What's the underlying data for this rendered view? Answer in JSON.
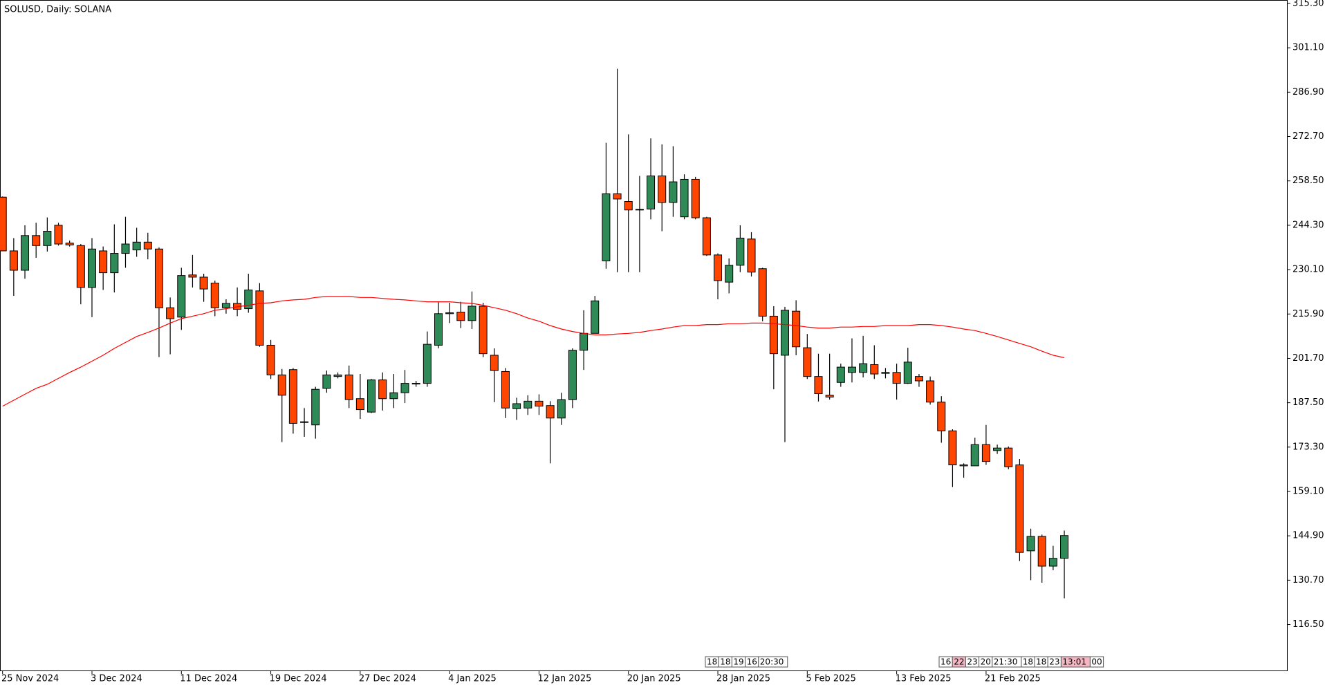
{
  "chart_data": {
    "type": "candlestick",
    "title": "SOLUSD, Daily:  SOLANA",
    "categories": [
      "25 Nov 2024",
      null,
      null,
      null,
      null,
      null,
      null,
      null,
      "3 Dec 2024",
      null,
      null,
      null,
      null,
      null,
      null,
      null,
      "11 Dec 2024",
      null,
      null,
      null,
      null,
      null,
      null,
      null,
      "19 Dec 2024",
      null,
      null,
      null,
      null,
      null,
      null,
      null,
      "27 Dec 2024",
      null,
      null,
      null,
      null,
      null,
      null,
      null,
      "4 Jan 2025",
      null,
      null,
      null,
      null,
      null,
      null,
      null,
      "12 Jan 2025",
      null,
      null,
      null,
      null,
      null,
      null,
      null,
      "20 Jan 2025",
      null,
      null,
      null,
      null,
      null,
      null,
      null,
      "28 Jan 2025",
      null,
      null,
      null,
      null,
      null,
      null,
      null,
      "5 Feb 2025",
      null,
      null,
      null,
      null,
      null,
      null,
      null,
      "13 Feb 2025",
      null,
      null,
      null,
      null,
      null,
      null,
      null,
      "21 Feb 2025",
      null,
      null,
      null,
      null,
      null,
      null,
      null
    ],
    "open": [
      253.3,
      236.1,
      229.9,
      241.0,
      237.8,
      244.3,
      238.6,
      237.8,
      224.4,
      236.1,
      229.1,
      235.3,
      236.4,
      238.9,
      236.7,
      217.9,
      214.9,
      228.4,
      227.7,
      225.8,
      217.9,
      219.3,
      217.6,
      223.3,
      205.9,
      196.4,
      198.1,
      181.2,
      180.4,
      192.1,
      195.9,
      196.4,
      188.8,
      184.5,
      194.8,
      188.8,
      190.7,
      193.5,
      193.7,
      205.9,
      216.0,
      216.5,
      213.8,
      218.4,
      202.7,
      197.5,
      185.6,
      185.8,
      188.0,
      186.6,
      182.6,
      188.5,
      204.3,
      209.7,
      232.9,
      254.4,
      251.9,
      249.4,
      249.5,
      260.1,
      251.6,
      247.0,
      259.0,
      246.7,
      234.8,
      226.1,
      231.5,
      239.9,
      230.4,
      215.2,
      202.7,
      216.8,
      205.1,
      195.9,
      189.9,
      194.0,
      197.2,
      197.2,
      199.7,
      197.2,
      197.2,
      193.7,
      195.9,
      194.5,
      187.7,
      178.5,
      167.6,
      167.3,
      174.1,
      172.2,
      173.0,
      167.6,
      140.1,
      144.7,
      135.2,
      137.7
    ],
    "high": [
      253.5,
      240.2,
      244.3,
      245.1,
      246.8,
      245.1,
      239.4,
      238.3,
      240.2,
      237.5,
      244.6,
      247.0,
      243.5,
      241.9,
      237.2,
      221.2,
      230.7,
      234.8,
      228.8,
      226.6,
      220.6,
      224.4,
      228.8,
      225.8,
      207.6,
      198.3,
      198.6,
      185.8,
      192.6,
      197.8,
      197.2,
      199.4,
      196.7,
      195.1,
      197.2,
      196.7,
      198.0,
      194.5,
      210.3,
      219.8,
      219.5,
      219.8,
      223.1,
      219.5,
      204.9,
      198.6,
      189.1,
      189.9,
      190.2,
      188.0,
      190.7,
      204.9,
      217.1,
      221.7,
      270.7,
      294.4,
      273.4,
      260.1,
      272.1,
      270.2,
      269.6,
      260.6,
      259.8,
      247.0,
      235.3,
      233.7,
      244.3,
      242.1,
      230.7,
      218.4,
      218.2,
      220.3,
      209.5,
      203.2,
      203.2,
      200.0,
      208.1,
      208.9,
      205.9,
      198.6,
      200.0,
      205.1,
      196.7,
      195.9,
      189.6,
      179.0,
      168.1,
      176.3,
      180.4,
      174.1,
      173.5,
      169.5,
      147.2,
      145.3,
      141.7,
      146.6
    ],
    "low": [
      236.0,
      221.7,
      227.2,
      233.9,
      235.9,
      237.8,
      237.5,
      219.0,
      214.9,
      223.6,
      222.8,
      230.7,
      234.2,
      233.4,
      202.1,
      203.0,
      210.8,
      224.4,
      219.8,
      215.2,
      216.0,
      215.2,
      216.3,
      205.4,
      195.1,
      174.9,
      177.6,
      176.6,
      176.0,
      190.7,
      195.3,
      185.8,
      182.3,
      184.2,
      185.0,
      185.8,
      187.4,
      192.6,
      192.6,
      204.9,
      213.0,
      211.4,
      211.1,
      202.1,
      187.7,
      182.6,
      182.0,
      183.6,
      183.6,
      168.1,
      180.4,
      185.8,
      198.0,
      209.7,
      230.4,
      229.3,
      229.3,
      229.3,
      246.2,
      242.4,
      247.0,
      246.2,
      246.2,
      234.5,
      220.6,
      222.5,
      229.3,
      227.9,
      213.6,
      191.8,
      174.9,
      202.7,
      195.1,
      187.9,
      188.5,
      192.6,
      194.0,
      195.6,
      195.1,
      195.3,
      188.5,
      193.5,
      192.6,
      186.9,
      174.7,
      160.5,
      163.5,
      167.3,
      167.6,
      171.1,
      166.2,
      136.8,
      130.7,
      129.9,
      133.9,
      124.9
    ],
    "close": [
      236.1,
      229.9,
      241.0,
      237.8,
      242.4,
      238.3,
      238.0,
      224.4,
      236.7,
      229.1,
      235.3,
      238.3,
      238.9,
      236.7,
      217.9,
      214.4,
      228.2,
      227.7,
      223.9,
      217.9,
      219.3,
      217.4,
      223.6,
      205.9,
      196.4,
      189.9,
      180.9,
      181.4,
      191.8,
      196.4,
      196.4,
      188.5,
      185.3,
      194.8,
      188.8,
      190.7,
      193.7,
      193.7,
      206.2,
      216.0,
      216.3,
      213.8,
      218.4,
      203.2,
      197.8,
      185.8,
      187.2,
      188.0,
      186.4,
      182.6,
      188.5,
      204.3,
      209.7,
      220.1,
      254.4,
      252.7,
      249.2,
      249.2,
      260.1,
      251.6,
      258.2,
      259.0,
      246.7,
      234.8,
      226.6,
      231.5,
      240.2,
      229.3,
      215.2,
      203.2,
      217.1,
      205.4,
      195.9,
      190.4,
      189.3,
      198.9,
      198.9,
      200.0,
      196.7,
      196.9,
      193.7,
      200.5,
      194.5,
      187.7,
      178.5,
      167.6,
      167.3,
      174.1,
      168.7,
      173.0,
      167.0,
      139.6,
      144.7,
      135.2,
      137.7,
      145.0
    ],
    "up_color": "#2e8b57",
    "down_color": "#ff4500",
    "line": {
      "color": "#ff0000",
      "values": [
        186.4,
        188.3,
        190.2,
        192.1,
        193.4,
        195.3,
        197.2,
        198.9,
        200.8,
        202.7,
        204.9,
        206.8,
        208.7,
        210.0,
        211.4,
        213.0,
        214.4,
        215.2,
        216.0,
        217.1,
        217.6,
        218.2,
        218.7,
        219.3,
        219.5,
        220.1,
        220.4,
        220.6,
        221.2,
        221.5,
        221.5,
        221.5,
        221.2,
        221.2,
        220.9,
        220.6,
        220.4,
        220.1,
        219.8,
        219.8,
        219.8,
        219.5,
        219.3,
        218.7,
        217.9,
        217.1,
        216.0,
        214.6,
        213.6,
        212.2,
        211.1,
        210.3,
        209.7,
        209.2,
        209.2,
        209.5,
        209.7,
        210.0,
        210.6,
        211.1,
        211.7,
        212.2,
        212.2,
        212.5,
        212.5,
        212.8,
        212.8,
        213.0,
        213.0,
        212.8,
        212.5,
        212.2,
        211.7,
        211.4,
        211.4,
        211.7,
        211.7,
        211.9,
        211.9,
        212.2,
        212.2,
        212.2,
        212.5,
        212.5,
        212.2,
        211.7,
        211.1,
        210.6,
        209.7,
        208.7,
        207.6,
        206.5,
        205.4,
        204.0,
        202.7,
        201.9
      ]
    },
    "ylim": [
      101.8,
      316.4
    ],
    "yticks": [
      {
        "value": 315.3,
        "label": "315.30"
      },
      {
        "value": 301.1,
        "label": "301.10"
      },
      {
        "value": 286.9,
        "label": "286.90"
      },
      {
        "value": 272.7,
        "label": "272.70"
      },
      {
        "value": 258.5,
        "label": "258.50"
      },
      {
        "value": 244.3,
        "label": "244.30"
      },
      {
        "value": 230.1,
        "label": "230.10"
      },
      {
        "value": 215.9,
        "label": "215.90"
      },
      {
        "value": 201.7,
        "label": "201.70"
      },
      {
        "value": 187.5,
        "label": "187.50"
      },
      {
        "value": 173.3,
        "label": "173.30"
      },
      {
        "value": 159.1,
        "label": "159.10"
      },
      {
        "value": 144.9,
        "label": "144.90"
      },
      {
        "value": 130.7,
        "label": "130.70"
      },
      {
        "value": 116.5,
        "label": "116.50"
      }
    ],
    "event_flags": [
      [
        "18",
        "18",
        "19",
        "16",
        "20:30"
      ],
      [
        "16",
        "22",
        "23",
        "20",
        "21:30",
        "18",
        "18",
        "23",
        "13:01",
        "00"
      ]
    ]
  }
}
